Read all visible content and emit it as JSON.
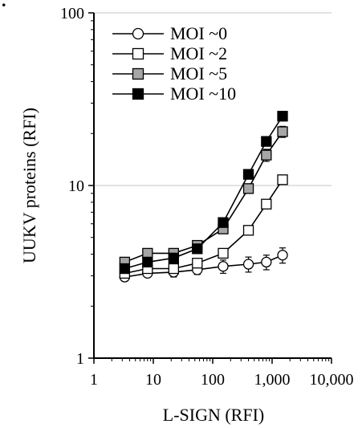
{
  "panel_mark": ".",
  "chart_data": {
    "type": "line",
    "xlabel": "L-SIGN (RFI)",
    "ylabel": "UUKV proteins (RFI)",
    "x_scale": "log",
    "y_scale": "log",
    "xlim": [
      1,
      10000
    ],
    "ylim": [
      1,
      100
    ],
    "x_ticks": [
      1,
      10,
      100,
      1000,
      10000
    ],
    "x_tick_labels": [
      "1",
      "10",
      "100",
      "1,000",
      "10,000"
    ],
    "y_ticks": [
      1,
      10,
      100
    ],
    "y_tick_labels": [
      "1",
      "10",
      "100"
    ],
    "y_gridlines": [
      10,
      100
    ],
    "legend_position": "top-left",
    "series": [
      {
        "name": "MOI ~0",
        "marker": "circle",
        "fill": "#ffffff",
        "x": [
          3.3,
          8,
          22,
          55,
          150,
          400,
          800,
          1500
        ],
        "y": [
          2.95,
          3.1,
          3.15,
          3.25,
          3.4,
          3.5,
          3.6,
          3.95
        ],
        "err": [
          0.15,
          0.15,
          0.2,
          0.2,
          0.3,
          0.35,
          0.35,
          0.4
        ]
      },
      {
        "name": "MOI ~2",
        "marker": "square",
        "fill": "#ffffff",
        "x": [
          3.3,
          8,
          22,
          55,
          150,
          400,
          800,
          1500
        ],
        "y": [
          3.1,
          3.3,
          3.3,
          3.55,
          4.05,
          5.5,
          7.8,
          10.8
        ],
        "err": [
          0.15,
          0.15,
          0.15,
          0.15,
          0.2,
          0.3,
          0.4,
          0.5
        ]
      },
      {
        "name": "MOI ~5",
        "marker": "square",
        "fill": "#a6a6a6",
        "x": [
          3.3,
          8,
          22,
          55,
          150,
          400,
          800,
          1500
        ],
        "y": [
          3.6,
          4.05,
          4.05,
          4.5,
          5.6,
          9.6,
          15,
          20.5
        ],
        "err": [
          0.15,
          0.2,
          0.2,
          0.2,
          0.3,
          0.6,
          1.2,
          1.5
        ]
      },
      {
        "name": "MOI ~10",
        "marker": "square",
        "fill": "#000000",
        "x": [
          3.3,
          8,
          22,
          55,
          150,
          400,
          800,
          1500
        ],
        "y": [
          3.3,
          3.6,
          3.8,
          4.3,
          6.1,
          11.6,
          18,
          25.2
        ],
        "err": [
          0.15,
          0.15,
          0.15,
          0.2,
          0.3,
          0.5,
          1.0,
          1.2
        ]
      }
    ]
  }
}
